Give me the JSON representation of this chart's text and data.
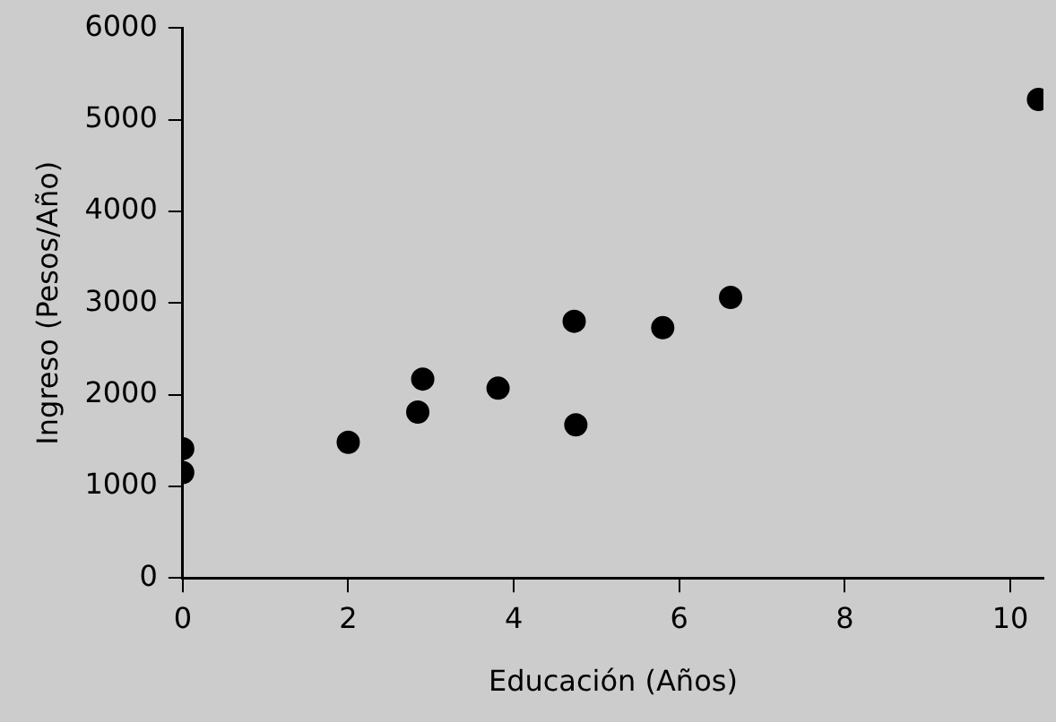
{
  "chart_data": {
    "type": "scatter",
    "xlabel": "Educación (Años)",
    "ylabel": "Ingreso (Pesos/Año)",
    "x": [
      0,
      0,
      2,
      2.84,
      2.9,
      3.81,
      4.75,
      4.73,
      5.8,
      6.62,
      10.34
    ],
    "values": [
      1410,
      1150,
      1480,
      1810,
      2170,
      2070,
      1670,
      2800,
      2730,
      3060,
      5220
    ],
    "color": "#000000",
    "marker": "circle",
    "xlim": [
      0,
      10.4
    ],
    "xticks": [
      0,
      2,
      4,
      6,
      8,
      10
    ],
    "ylim": [
      0,
      6000
    ],
    "yticks": [
      0,
      1000,
      2000,
      3000,
      4000,
      5000,
      6000
    ]
  }
}
